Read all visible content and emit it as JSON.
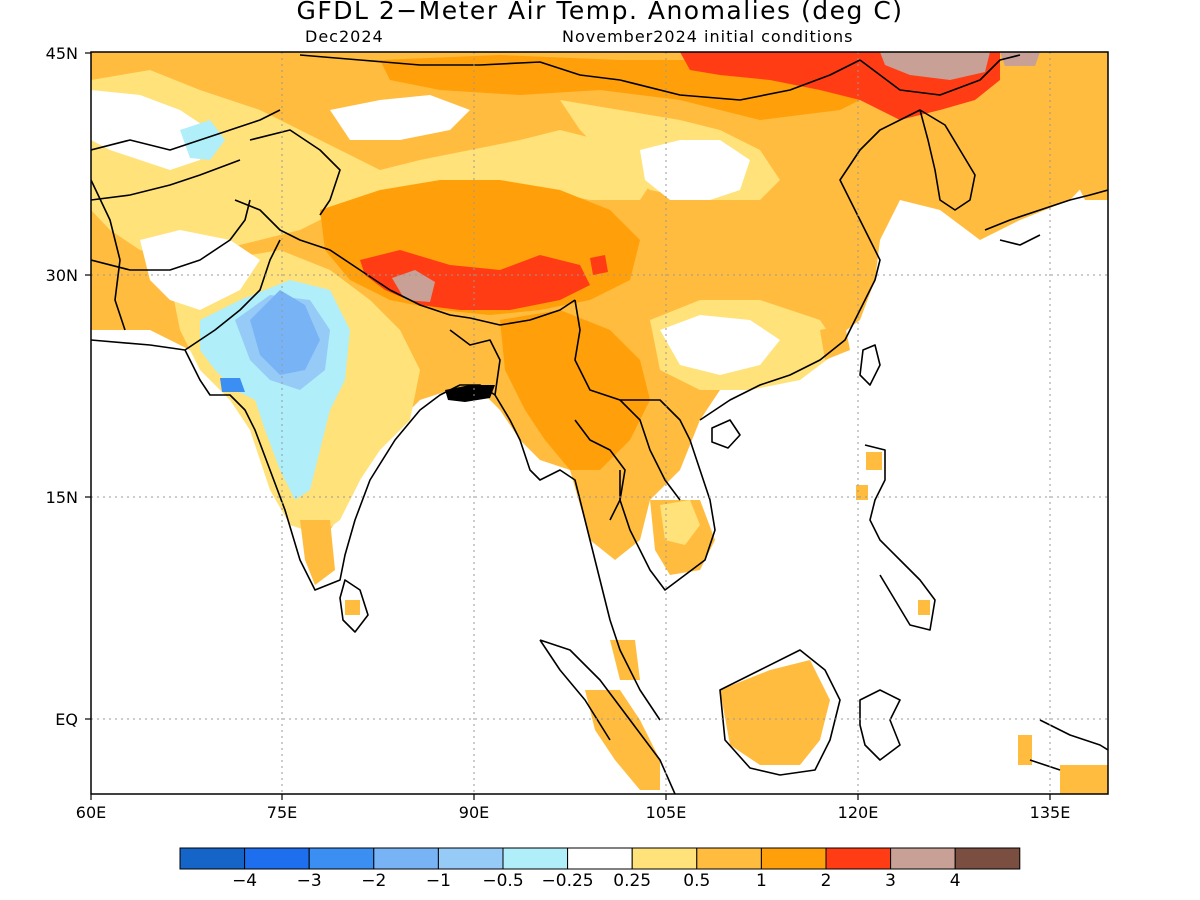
{
  "title": "GFDL 2−Meter Air Temp. Anomalies (deg C)",
  "subtitle_left": "Dec2024",
  "subtitle_right": "November2024 initial conditions",
  "lat_labels": [
    "45N",
    "30N",
    "15N",
    "EQ"
  ],
  "lon_labels": [
    "60E",
    "75E",
    "90E",
    "105E",
    "120E",
    "135E"
  ],
  "colorbar": {
    "labels": [
      "−4",
      "−3",
      "−2",
      "−1",
      "−0.5",
      "−0.25",
      "0.25",
      "0.5",
      "1",
      "2",
      "3",
      "4"
    ],
    "colors": [
      "#1565c8",
      "#1e6ef0",
      "#3c8ff2",
      "#78b4f5",
      "#96caf7",
      "#b0eefa",
      "#ffffff",
      "#ffe27a",
      "#ffbc3e",
      "#ff9f0a",
      "#ff3c14",
      "#c8a096",
      "#7a4e40"
    ]
  },
  "legend_colors": {
    "above_0_25": "#ffe27a",
    "above_0_5": "#ffbc3e",
    "above_1": "#ff9f0a",
    "above_2": "#ff3c14",
    "above_3": "#c8a096",
    "below_minus_0_25": "#b0eefa",
    "below_minus_0_5": "#96caf7",
    "below_minus_1": "#78b4f5",
    "below_minus_2": "#3c8ff2"
  }
}
